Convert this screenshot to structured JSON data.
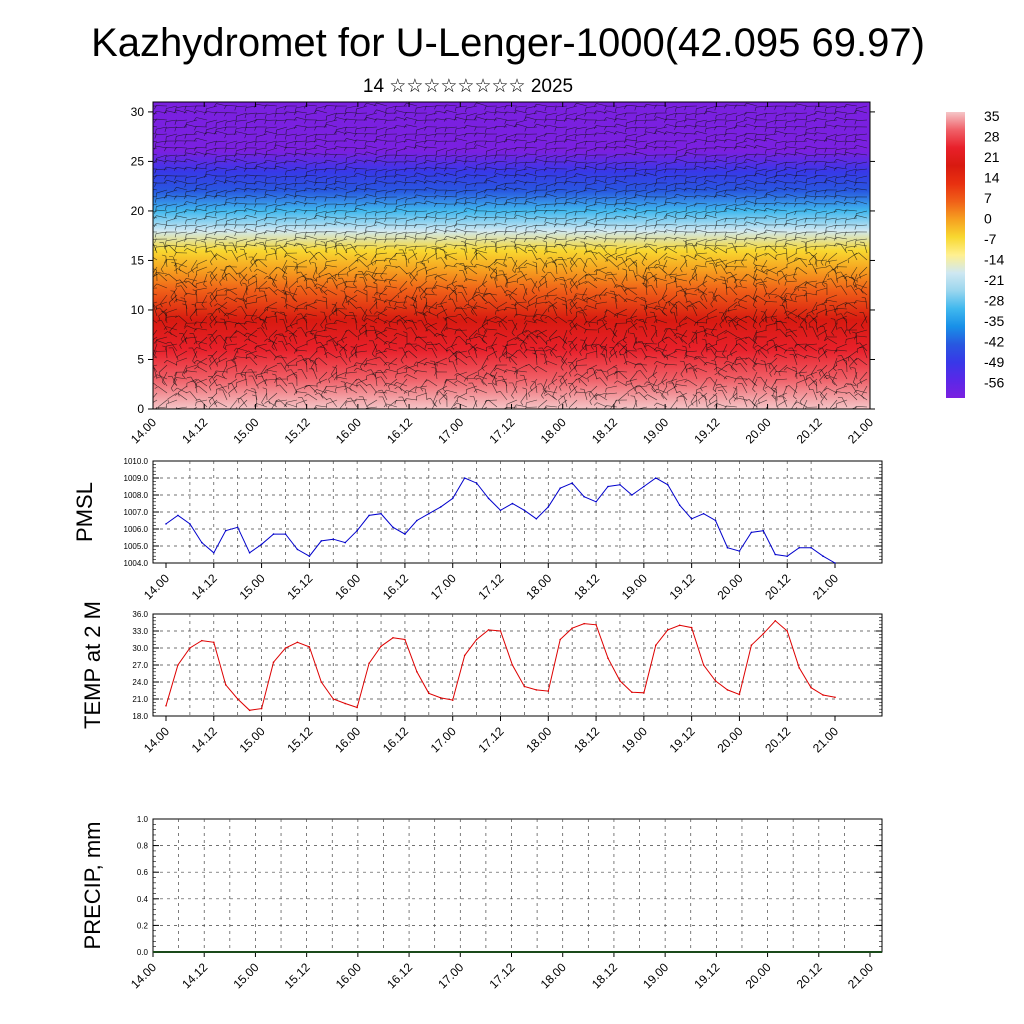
{
  "figure": {
    "title": "Kazhydromet for U-Lenger-1000(42.095 69.97)",
    "subtitle": "14 ☆☆☆☆☆☆☆☆ 2025"
  },
  "chart_data": [
    {
      "type": "heatmap",
      "id": "temperature-wind-cross-section",
      "x_ticks": [
        "14.00",
        "14.12",
        "15.00",
        "15.12",
        "16.00",
        "16.12",
        "17.00",
        "17.12",
        "18.00",
        "18.12",
        "19.00",
        "19.12",
        "20.00",
        "20.12",
        "21.00"
      ],
      "y_ticks": [
        0,
        5,
        10,
        15,
        20,
        25,
        30
      ],
      "ylim": [
        0,
        31
      ],
      "overlay": "wind barbs",
      "temperature_profile_by_level": [
        {
          "level": 0,
          "value": 32
        },
        {
          "level": 3,
          "value": 30
        },
        {
          "level": 6,
          "value": 25
        },
        {
          "level": 9,
          "value": 15
        },
        {
          "level": 12,
          "value": 5
        },
        {
          "level": 14,
          "value": -3
        },
        {
          "level": 16,
          "value": -10
        },
        {
          "level": 18,
          "value": -22
        },
        {
          "level": 20,
          "value": -35
        },
        {
          "level": 22,
          "value": -44
        },
        {
          "level": 24,
          "value": -52
        },
        {
          "level": 26,
          "value": -60
        },
        {
          "level": 28,
          "value": -62
        },
        {
          "level": 31,
          "value": -64
        }
      ],
      "colorbar": {
        "labels": [
          "35",
          "28",
          "21",
          "14",
          "7",
          "0",
          "-7",
          "-14",
          "-21",
          "-28",
          "-35",
          "-42",
          "-49",
          "-56"
        ],
        "colors": [
          "#f5c6c8",
          "#f06068",
          "#e8202a",
          "#d81a10",
          "#e83010",
          "#f06018",
          "#f6a020",
          "#f8d830",
          "#fff090",
          "#cfe8f2",
          "#9ad6ee",
          "#40b8ee",
          "#1890e8",
          "#2858e0",
          "#3838e8",
          "#5a28e8",
          "#7a20e0"
        ]
      }
    },
    {
      "type": "line",
      "id": "pmsl",
      "ylabel": "PMSL",
      "ylim": [
        1004.0,
        1010.0
      ],
      "y_ticks": [
        "1004.0",
        "1005.0",
        "1006.0",
        "1007.0",
        "1008.0",
        "1009.0",
        "1010.0"
      ],
      "x_ticks": [
        "14.00",
        "14.12",
        "15.00",
        "15.12",
        "16.00",
        "16.12",
        "17.00",
        "17.12",
        "18.00",
        "18.12",
        "19.00",
        "19.12",
        "20.00",
        "20.12",
        "21.00"
      ],
      "series": [
        {
          "color": "#0000cc",
          "values": [
            1006.3,
            1006.8,
            1006.3,
            1005.2,
            1004.6,
            1005.9,
            1006.1,
            1004.6,
            1005.1,
            1005.7,
            1005.7,
            1004.8,
            1004.4,
            1005.3,
            1005.4,
            1005.2,
            1005.9,
            1006.8,
            1006.9,
            1006.1,
            1005.7,
            1006.5,
            1006.9,
            1007.3,
            1007.8,
            1009.0,
            1008.7,
            1007.8,
            1007.1,
            1007.5,
            1007.1,
            1006.6,
            1007.3,
            1008.4,
            1008.7,
            1007.9,
            1007.6,
            1008.5,
            1008.6,
            1008.0,
            1008.5,
            1009.0,
            1008.6,
            1007.4,
            1006.6,
            1006.9,
            1006.5,
            1004.9,
            1004.7,
            1005.8,
            1005.9,
            1004.5,
            1004.4,
            1004.9,
            1004.9,
            1004.4,
            1004.0
          ]
        }
      ]
    },
    {
      "type": "line",
      "id": "temp-2m",
      "ylabel": "TEMP at 2 M",
      "ylim": [
        18.0,
        36.0
      ],
      "y_ticks": [
        "18.0",
        "21.0",
        "24.0",
        "27.0",
        "30.0",
        "33.0",
        "36.0"
      ],
      "x_ticks": [
        "14.00",
        "14.12",
        "15.00",
        "15.12",
        "16.00",
        "16.12",
        "17.00",
        "17.12",
        "18.00",
        "18.12",
        "19.00",
        "19.12",
        "20.00",
        "20.12",
        "21.00"
      ],
      "series": [
        {
          "color": "#dd0000",
          "values": [
            19.8,
            27.0,
            30.0,
            31.3,
            31.0,
            23.5,
            21.0,
            19.0,
            19.3,
            27.5,
            30.0,
            31.0,
            30.2,
            24.0,
            21.0,
            20.2,
            19.5,
            27.3,
            30.3,
            31.8,
            31.5,
            25.8,
            22.0,
            21.2,
            20.8,
            28.7,
            31.5,
            33.2,
            33.0,
            27.0,
            23.2,
            22.6,
            22.4,
            31.5,
            33.5,
            34.3,
            34.1,
            28.2,
            24.2,
            22.2,
            22.1,
            30.5,
            33.2,
            34.0,
            33.6,
            27.0,
            24.2,
            22.6,
            21.8,
            30.5,
            32.5,
            34.8,
            33.0,
            26.5,
            23.0,
            21.7,
            21.3
          ]
        }
      ]
    },
    {
      "type": "bar",
      "id": "precip",
      "ylabel": "PRECIP, mm",
      "ylim": [
        0.0,
        1.0
      ],
      "y_ticks": [
        "0.0",
        "0.2",
        "0.4",
        "0.6",
        "0.8",
        "1.0"
      ],
      "x_ticks": [
        "14.00",
        "14.12",
        "15.00",
        "15.12",
        "16.00",
        "16.12",
        "17.00",
        "17.12",
        "18.00",
        "18.12",
        "19.00",
        "19.12",
        "20.00",
        "20.12",
        "21.00"
      ],
      "values": []
    }
  ]
}
